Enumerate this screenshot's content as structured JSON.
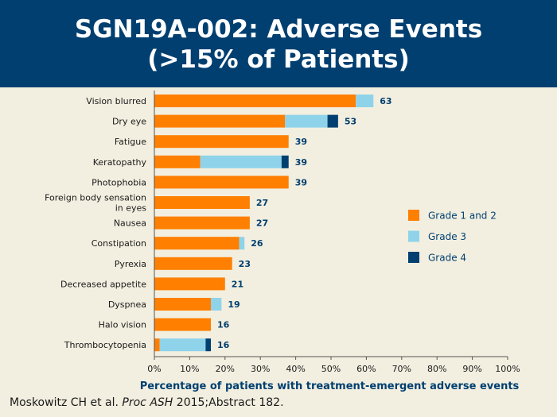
{
  "slide": {
    "title": "SGN19A-002: Adverse Events\n(>15% of Patients)",
    "citation": {
      "authors": "Moskowitz CH et al.",
      "journal": "Proc ASH",
      "rest": "2015;Abstract 182."
    }
  },
  "colors": {
    "header_bg": "#003f70",
    "background": "#f2efe0",
    "grade1_2": "#ff7f00",
    "grade3": "#8fd3ea",
    "grade4": "#003f70",
    "value_label": "#003f70",
    "xlabel": "#003f70"
  },
  "chart_data": {
    "type": "bar",
    "orientation": "horizontal",
    "stacked": true,
    "categories": [
      "Vision blurred",
      "Dry eye",
      "Fatigue",
      "Keratopathy",
      "Photophobia",
      "Foreign body sensation\nin eyes",
      "Nausea",
      "Constipation",
      "Pyrexia",
      "Decreased appetite",
      "Dyspnea",
      "Halo vision",
      "Thrombocytopenia"
    ],
    "series": [
      {
        "name": "Grade 1 and 2",
        "values": [
          57,
          37,
          38,
          13,
          38,
          27,
          27,
          24,
          22,
          20,
          16,
          16,
          1.5
        ]
      },
      {
        "name": "Grade 3",
        "values": [
          5,
          12,
          0,
          23,
          0,
          0,
          0,
          1.5,
          0,
          0,
          3,
          0,
          13
        ]
      },
      {
        "name": "Grade 4",
        "values": [
          0,
          3,
          0,
          2,
          0,
          0,
          0,
          0,
          0,
          0,
          0,
          0,
          1.5
        ]
      }
    ],
    "totals": [
      63,
      53,
      39,
      39,
      39,
      27,
      27,
      26,
      23,
      21,
      19,
      16,
      16
    ],
    "xlabel": "Percentage of patients with treatment-emergent adverse events",
    "ylabel": "",
    "xlim": [
      0,
      100
    ],
    "xticks": [
      "0%",
      "10%",
      "20%",
      "30%",
      "40%",
      "50%",
      "60%",
      "70%",
      "80%",
      "90%",
      "100%"
    ],
    "grid": false,
    "legend_position": "right"
  }
}
